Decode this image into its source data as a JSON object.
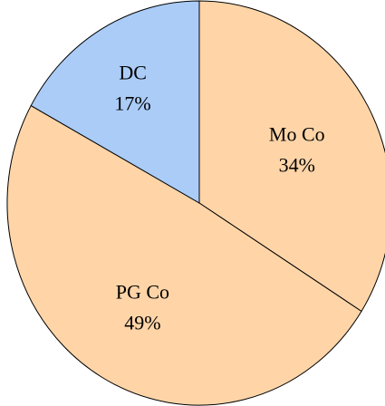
{
  "chart_data": {
    "type": "pie",
    "title": "",
    "slices": [
      {
        "label": "Mo Co",
        "value": 34,
        "display": "34%",
        "color": "#ffd5a8"
      },
      {
        "label": "PG Co",
        "value": 49,
        "display": "49%",
        "color": "#ffd5a8"
      },
      {
        "label": "DC",
        "value": 17,
        "display": "17%",
        "color": "#aaccf7"
      }
    ],
    "start_angle_deg": 0,
    "direction": "clockwise",
    "legend": "none",
    "labels_inside": true
  }
}
